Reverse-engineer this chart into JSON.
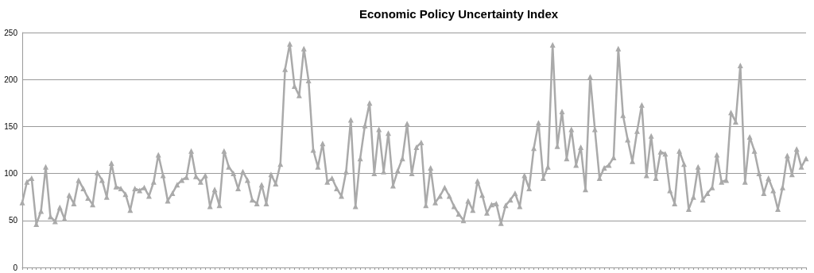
{
  "chart_data": {
    "type": "line",
    "title": "Economic Policy Uncertainty Index",
    "categories": [
      null,
      null,
      null,
      null,
      null,
      null,
      null,
      null,
      null,
      null,
      null,
      null,
      null,
      null,
      null,
      null,
      null,
      null,
      null,
      null,
      null,
      null,
      null,
      null,
      null,
      null,
      null,
      null,
      null,
      null,
      null,
      null,
      null,
      null,
      null,
      null,
      null,
      null,
      null,
      null,
      null,
      null,
      null,
      null,
      null,
      null,
      null,
      null,
      null,
      null,
      null,
      null,
      null,
      null,
      null,
      null,
      null,
      null,
      null,
      null,
      null,
      null,
      null,
      null,
      null,
      null,
      null,
      null,
      null,
      null,
      null,
      null,
      null,
      null,
      null,
      null,
      null,
      null,
      null,
      null,
      null,
      null,
      null,
      null,
      null,
      null,
      null,
      null,
      null,
      null,
      null,
      null,
      null,
      null,
      null,
      null,
      null,
      null,
      null,
      null,
      null,
      null,
      null,
      null,
      null,
      null,
      null,
      null,
      null,
      null,
      null,
      null,
      null,
      null,
      null,
      null,
      null,
      null,
      null,
      null,
      null,
      null,
      null,
      null,
      null,
      null,
      null,
      null,
      null,
      null,
      null,
      null,
      null,
      null,
      null,
      null,
      null,
      null,
      null,
      null,
      null,
      null,
      null,
      null,
      null,
      null,
      null,
      null,
      null,
      null,
      null,
      null,
      null,
      null,
      null,
      null,
      null,
      null,
      null,
      null,
      null,
      null,
      null,
      null,
      null,
      null,
      null,
      null
    ],
    "values": [
      69,
      91,
      95,
      46,
      60,
      107,
      54,
      49,
      64,
      52,
      77,
      68,
      93,
      84,
      74,
      67,
      101,
      93,
      75,
      111,
      86,
      84,
      78,
      61,
      84,
      82,
      85,
      76,
      91,
      120,
      98,
      71,
      79,
      88,
      93,
      96,
      124,
      97,
      91,
      98,
      65,
      83,
      66,
      124,
      107,
      100,
      84,
      102,
      93,
      72,
      68,
      88,
      68,
      99,
      89,
      110,
      211,
      238,
      193,
      183,
      233,
      199,
      125,
      107,
      132,
      91,
      95,
      84,
      76,
      102,
      157,
      65,
      116,
      151,
      175,
      100,
      147,
      102,
      143,
      87,
      103,
      116,
      153,
      100,
      128,
      133,
      66,
      106,
      69,
      76,
      85,
      76,
      65,
      57,
      50,
      71,
      61,
      92,
      77,
      58,
      67,
      68,
      47,
      66,
      72,
      79,
      65,
      98,
      84,
      127,
      154,
      95,
      107,
      237,
      129,
      166,
      116,
      147,
      109,
      128,
      83,
      203,
      147,
      95,
      106,
      109,
      117,
      233,
      162,
      136,
      113,
      145,
      173,
      98,
      140,
      95,
      123,
      121,
      82,
      68,
      124,
      110,
      62,
      75,
      107,
      72,
      79,
      85,
      120,
      91,
      93,
      165,
      155,
      215,
      91,
      139,
      124,
      100,
      79,
      95,
      82,
      62,
      85,
      119,
      99,
      126,
      107,
      116
    ],
    "color": "#aaaaaa",
    "ylim": [
      0,
      250
    ],
    "yticks": [
      0,
      50,
      100,
      150,
      200,
      250
    ],
    "grid": "y",
    "marker": "triangle",
    "line_style": "solid",
    "tick_labels": "y"
  }
}
